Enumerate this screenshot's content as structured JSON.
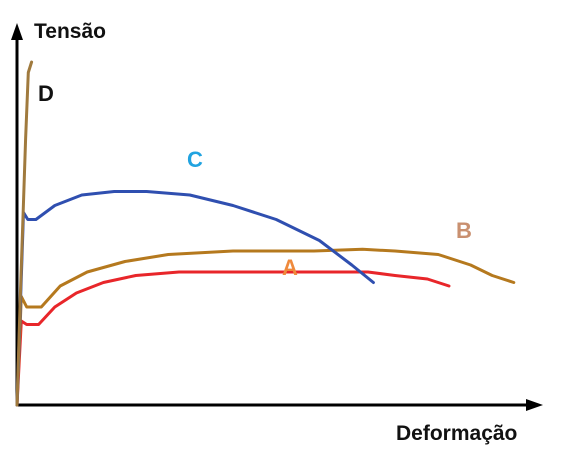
{
  "chart_data": {
    "type": "line",
    "title": "",
    "xlabel": "Deformação",
    "ylabel": "Tensão",
    "axis_ticks": "none",
    "grid": false,
    "x_range": [
      0,
      1
    ],
    "y_range": [
      0,
      1
    ],
    "value_note": "schematic curves; values are normalized 0–1 reading of the sketch, no numeric ticks shown",
    "series": [
      {
        "name": "A",
        "color": "#e8262a",
        "label_color": "#ef8a3c",
        "x": [
          0,
          0.008,
          0.018,
          0.04,
          0.07,
          0.11,
          0.16,
          0.22,
          0.3,
          0.4,
          0.55,
          0.65,
          0.7,
          0.76,
          0.8
        ],
        "y": [
          0,
          0.24,
          0.23,
          0.23,
          0.28,
          0.32,
          0.35,
          0.37,
          0.38,
          0.38,
          0.38,
          0.38,
          0.37,
          0.36,
          0.34
        ]
      },
      {
        "name": "B",
        "color": "#b5791e",
        "label_color": "#c99070",
        "x": [
          0,
          0.008,
          0.018,
          0.045,
          0.08,
          0.13,
          0.2,
          0.28,
          0.4,
          0.55,
          0.64,
          0.7,
          0.78,
          0.84,
          0.88,
          0.92
        ],
        "y": [
          0,
          0.31,
          0.28,
          0.28,
          0.34,
          0.38,
          0.41,
          0.43,
          0.44,
          0.44,
          0.445,
          0.44,
          0.43,
          0.4,
          0.37,
          0.35
        ]
      },
      {
        "name": "C",
        "color": "#2f4fb0",
        "label_color": "#21a3e0",
        "x": [
          0,
          0.012,
          0.02,
          0.035,
          0.07,
          0.12,
          0.18,
          0.24,
          0.32,
          0.4,
          0.48,
          0.56,
          0.62,
          0.66
        ],
        "y": [
          0,
          0.55,
          0.53,
          0.53,
          0.57,
          0.6,
          0.61,
          0.61,
          0.6,
          0.57,
          0.53,
          0.47,
          0.4,
          0.35
        ]
      },
      {
        "name": "D",
        "color": "#a07a3e",
        "label_color": "#111111",
        "x": [
          0,
          0.006,
          0.012,
          0.016,
          0.019,
          0.021,
          0.027
        ],
        "y": [
          0,
          0.3,
          0.58,
          0.76,
          0.88,
          0.95,
          0.98
        ]
      }
    ]
  }
}
